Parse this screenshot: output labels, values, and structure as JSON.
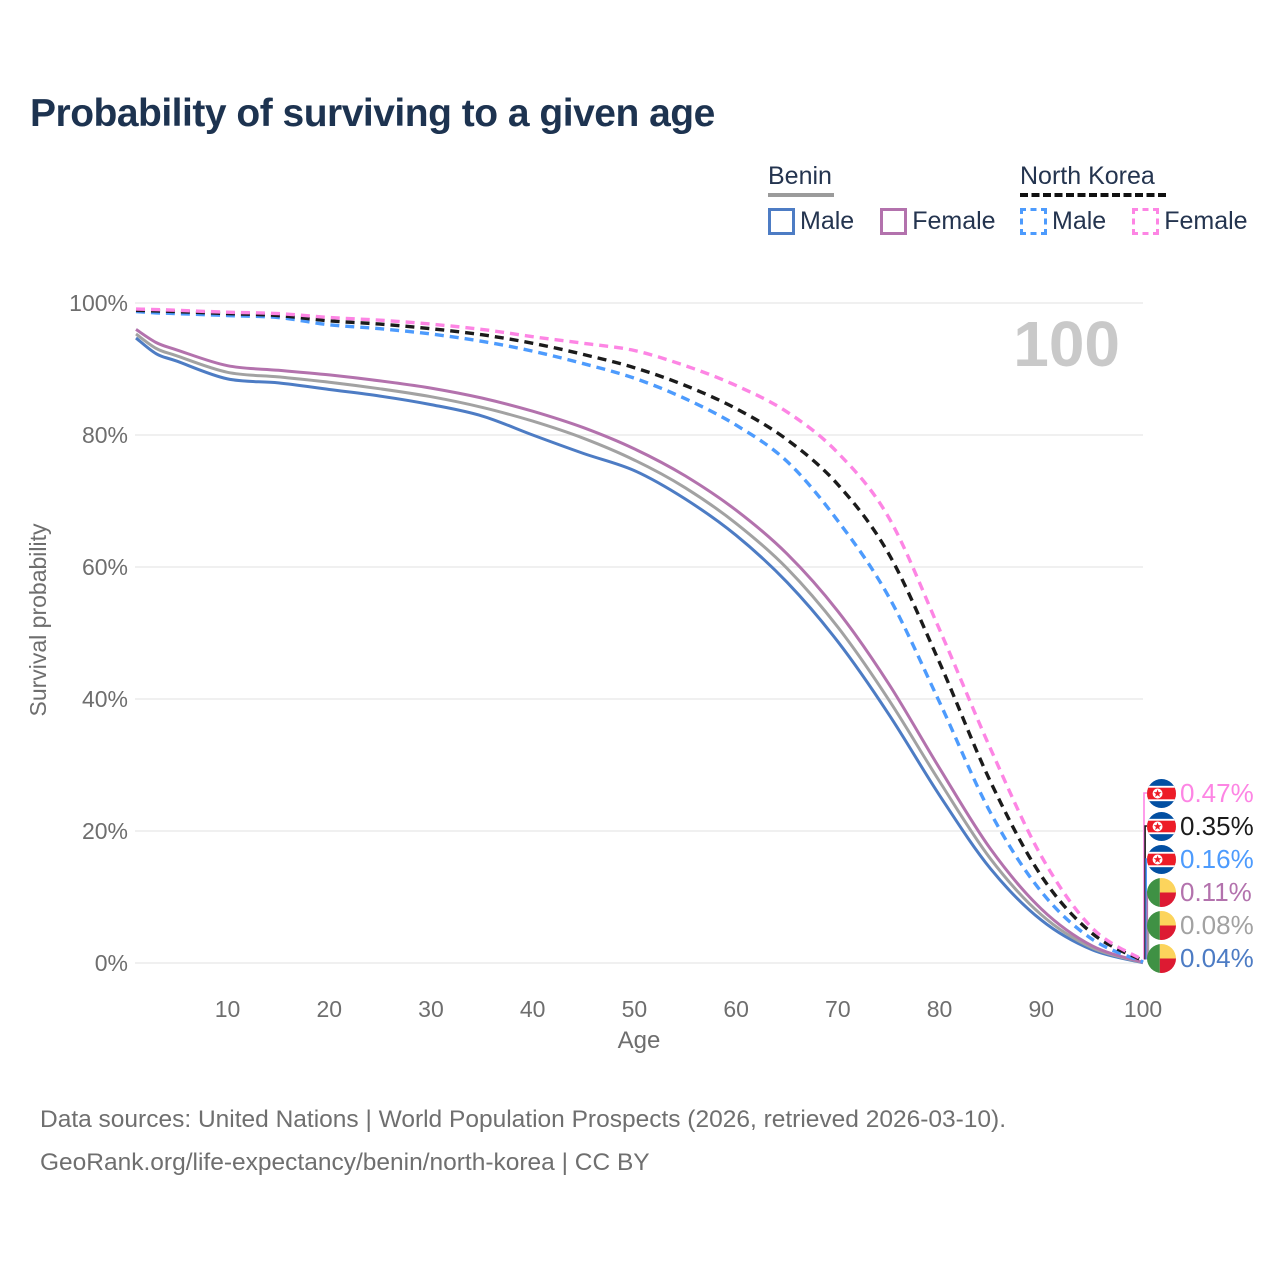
{
  "page": {
    "title": "Probability of surviving to a given age",
    "watermark": "100",
    "footer_line1": "Data sources: United Nations | World Population Prospects (2026, retrieved 2026-03-10).",
    "footer_line2": "GeoRank.org/life-expectancy/benin/north-korea | CC BY"
  },
  "theme": {
    "title_color": "#1d3350",
    "axis_text_color": "#6e6e6e",
    "grid_color": "#ececec",
    "watermark_color": "#c9c9c9",
    "footer_color": "#6f6f6f",
    "legend_text_color": "#24344f",
    "benin_underline_color": "#9b9b9b",
    "nk_underline_color": "#111111"
  },
  "legend": {
    "groups": [
      {
        "label": "Benin",
        "underline": "solid",
        "items": [
          {
            "label": "Male",
            "color": "#4d7cc4",
            "dashed": false
          },
          {
            "label": "Female",
            "color": "#b372ad",
            "dashed": false
          }
        ]
      },
      {
        "label": "North Korea",
        "underline": "dashed",
        "items": [
          {
            "label": "Male",
            "color": "#4d9bfd",
            "dashed": true
          },
          {
            "label": "Female",
            "color": "#fd85e4",
            "dashed": true
          }
        ]
      }
    ]
  },
  "chart_data": {
    "type": "line",
    "title": "Probability of surviving to a given age",
    "xlabel": "Age",
    "ylabel": "Survival probability",
    "xlim": [
      1,
      100
    ],
    "ylim": [
      0,
      100
    ],
    "grid": "horizontal-only",
    "x_ticks": [
      10,
      20,
      30,
      40,
      50,
      60,
      70,
      80,
      90,
      100
    ],
    "y_ticks": [
      {
        "value": 100,
        "label": "100%"
      },
      {
        "value": 80,
        "label": "80%"
      },
      {
        "value": 60,
        "label": "60%"
      },
      {
        "value": 40,
        "label": "40%"
      },
      {
        "value": 20,
        "label": "20%"
      },
      {
        "value": 0,
        "label": "0%"
      }
    ],
    "x": [
      1,
      3,
      5,
      10,
      15,
      20,
      25,
      30,
      35,
      40,
      45,
      50,
      55,
      60,
      65,
      70,
      75,
      80,
      85,
      90,
      95,
      100
    ],
    "series": [
      {
        "id": "benin_male",
        "country": "Benin",
        "sex": "Male",
        "flag": "benin",
        "color": "#4d7cc4",
        "dashed": false,
        "end_label": "0.04%",
        "values": [
          94.7,
          92.3,
          91.2,
          88.5,
          87.9,
          86.9,
          85.9,
          84.6,
          82.9,
          80.0,
          77.2,
          74.6,
          70.3,
          64.8,
          57.7,
          48.7,
          37.7,
          25.4,
          14.3,
          6.5,
          2.0,
          0.04
        ]
      },
      {
        "id": "benin_all",
        "country": "Benin",
        "sex": "All",
        "flag": "benin",
        "color": "#a2a2a2",
        "dashed": false,
        "end_label": "0.08%",
        "values": [
          95.3,
          93.1,
          92.0,
          89.5,
          88.8,
          88.0,
          87.0,
          85.8,
          84.2,
          82.1,
          79.5,
          76.2,
          72.0,
          66.6,
          59.8,
          50.9,
          39.9,
          27.5,
          15.8,
          7.3,
          2.3,
          0.08
        ]
      },
      {
        "id": "benin_female",
        "country": "Benin",
        "sex": "Female",
        "flag": "benin",
        "color": "#b372ad",
        "dashed": false,
        "end_label": "0.11%",
        "values": [
          96.0,
          94.0,
          92.9,
          90.5,
          89.8,
          89.1,
          88.2,
          87.1,
          85.6,
          83.6,
          81.1,
          77.9,
          73.8,
          68.6,
          62.0,
          53.3,
          42.3,
          29.5,
          17.3,
          8.2,
          2.6,
          0.11
        ]
      },
      {
        "id": "nk_male",
        "country": "North Korea",
        "sex": "Male",
        "flag": "north-korea",
        "color": "#4d9bfd",
        "dashed": true,
        "end_label": "0.16%",
        "values": [
          98.7,
          98.5,
          98.4,
          98.1,
          97.8,
          96.7,
          96.1,
          95.3,
          94.2,
          92.7,
          90.8,
          88.6,
          85.5,
          81.5,
          76.0,
          67.0,
          55.5,
          39.5,
          22.8,
          10.8,
          3.6,
          0.16
        ]
      },
      {
        "id": "nk_all",
        "country": "North Korea",
        "sex": "All",
        "flag": "north-korea",
        "color": "#1b1b1b",
        "dashed": true,
        "end_label": "0.35%",
        "values": [
          98.9,
          98.8,
          98.7,
          98.4,
          98.1,
          97.3,
          96.8,
          96.1,
          95.2,
          93.9,
          92.2,
          90.2,
          87.5,
          84.0,
          79.3,
          72.5,
          62.0,
          45.5,
          27.5,
          13.2,
          4.5,
          0.35
        ]
      },
      {
        "id": "nk_female",
        "country": "North Korea",
        "sex": "Female",
        "flag": "north-korea",
        "color": "#fd85e4",
        "dashed": true,
        "end_label": "0.47%",
        "values": [
          99.1,
          99.0,
          98.9,
          98.6,
          98.4,
          97.8,
          97.4,
          96.8,
          96.0,
          94.9,
          93.9,
          92.8,
          90.5,
          87.5,
          83.5,
          77.3,
          67.5,
          50.5,
          32.5,
          16.2,
          5.3,
          0.47
        ]
      }
    ]
  }
}
